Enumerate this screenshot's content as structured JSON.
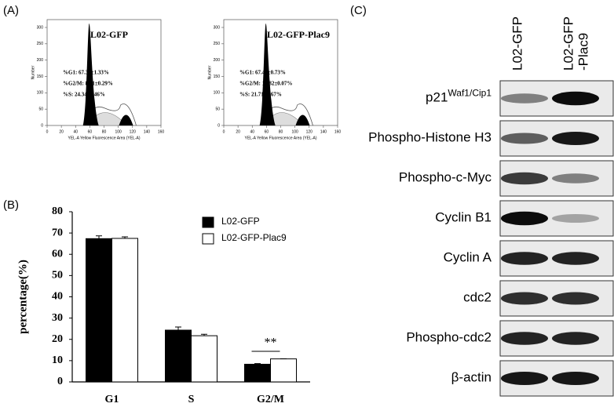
{
  "panel_labels": [
    "(A)",
    "(B)",
    "(C)"
  ],
  "flow": {
    "y_label": "Number",
    "x_label": "YEL-A Yellow Fluorescence Area (YEL-A)",
    "xticks": [
      0,
      20,
      40,
      60,
      80,
      100,
      120,
      140,
      160
    ],
    "yticks": [
      0,
      50,
      100,
      150,
      200,
      250,
      300
    ],
    "plots": [
      {
        "title": "L02-GFP",
        "stats": [
          "%G1: 67.35±1.33%",
          "%G2/M: 8.31±0.29%",
          "%S: 24.34±1.46%"
        ]
      },
      {
        "title": "L02-GFP-Plac9",
        "stats": [
          "%G1: 67.47±0.73%",
          "%G2/M: 10.82±0.07%",
          "%S: 21.71±0.67%"
        ]
      }
    ]
  },
  "chart_data": {
    "type": "bar",
    "y_label": "percentage(%)",
    "categories": [
      "G1",
      "S",
      "G2/M"
    ],
    "series": [
      {
        "name": "L02-GFP",
        "color": "#000000",
        "values": [
          67.35,
          24.34,
          8.31
        ],
        "errors": [
          1.33,
          1.46,
          0.29
        ]
      },
      {
        "name": "L02-GFP-Plac9",
        "color": "#ffffff",
        "values": [
          67.47,
          21.71,
          10.82
        ],
        "errors": [
          0.73,
          0.67,
          0.07
        ]
      }
    ],
    "ylim": [
      0,
      80
    ],
    "yticks": [
      0,
      10,
      20,
      30,
      40,
      50,
      60,
      70,
      80
    ],
    "grid": false,
    "annotation": "**"
  },
  "blot": {
    "columns": [
      [
        "L02-GFP"
      ],
      [
        "L02-GFP",
        "-Plac9"
      ]
    ],
    "rows": [
      {
        "name": "p21",
        "sup": "Waf1/Cip1"
      },
      {
        "name": "Phospho-Histone H3"
      },
      {
        "name": "Phospho-c-Myc"
      },
      {
        "name": "Cyclin B1"
      },
      {
        "name": "Cyclin A"
      },
      {
        "name": "cdc2"
      },
      {
        "name": "Phospho-cdc2"
      },
      {
        "name": "β-actin"
      }
    ]
  }
}
